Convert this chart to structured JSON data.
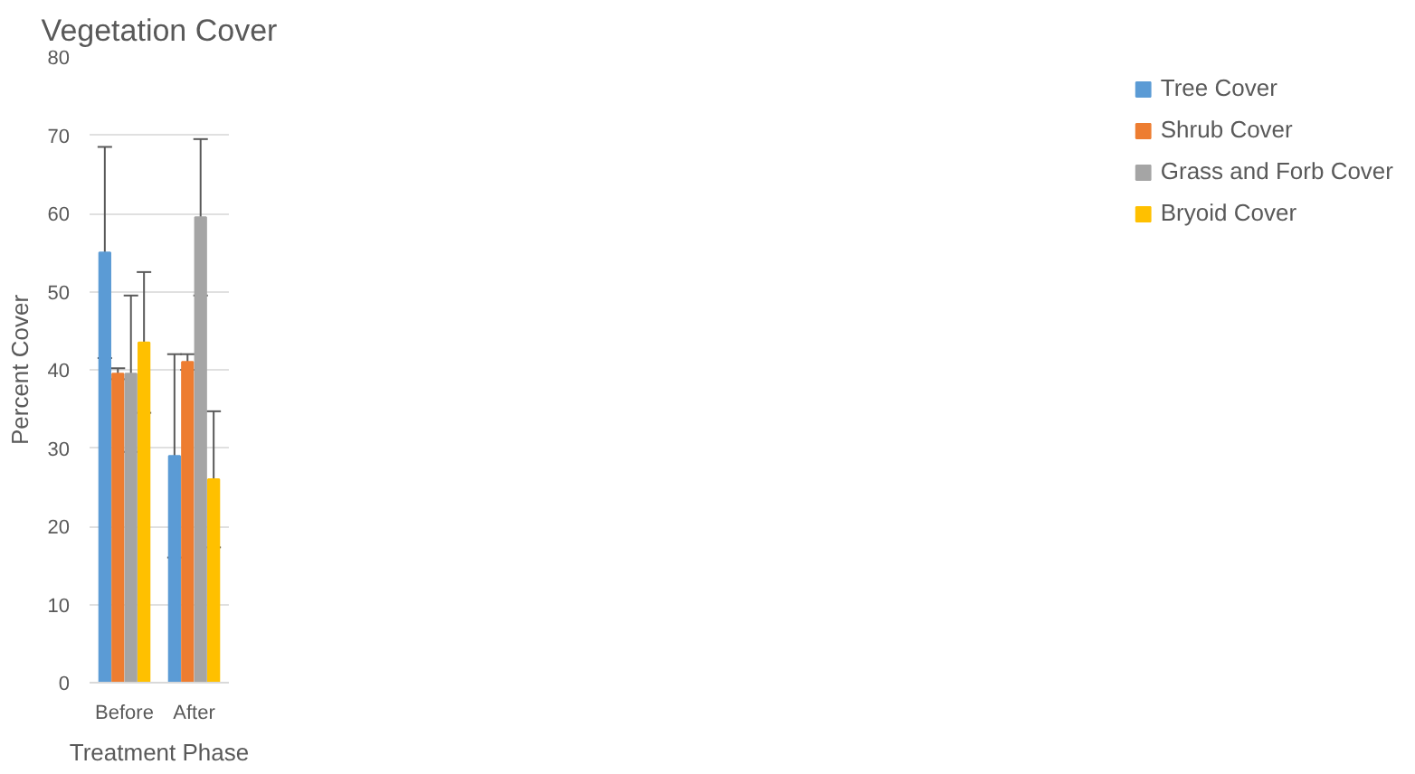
{
  "chart_data": {
    "type": "bar",
    "title": "Vegetation Cover",
    "xlabel": "Treatment Phase",
    "ylabel": "Percent Cover",
    "categories": [
      "Before",
      "After"
    ],
    "series": [
      {
        "name": "Tree Cover",
        "color": "#5b9bd5",
        "values": [
          55,
          29
        ],
        "errors": [
          13.5,
          13
        ]
      },
      {
        "name": "Shrub Cover",
        "color": "#ed7d31",
        "values": [
          39.5,
          41
        ],
        "errors": [
          0.7,
          1
        ]
      },
      {
        "name": "Grass and Forb Cover",
        "color": "#a5a5a5",
        "values": [
          39.5,
          59.5
        ],
        "errors": [
          10,
          10
        ]
      },
      {
        "name": "Bryoid Cover",
        "color": "#ffc000",
        "values": [
          43.5,
          26
        ],
        "errors": [
          9,
          8.7
        ]
      }
    ],
    "ylim": [
      0,
      80
    ],
    "yticks": [
      0,
      10,
      20,
      30,
      40,
      50,
      60,
      70,
      80
    ],
    "grid": "y",
    "legend": "right"
  }
}
